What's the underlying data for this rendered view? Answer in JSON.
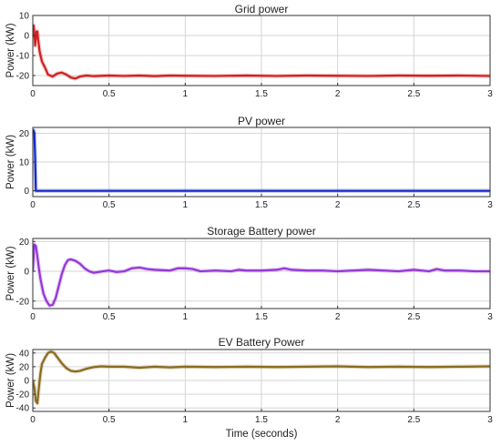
{
  "figure": {
    "xlabel": "Time (seconds)"
  },
  "chart_data": [
    {
      "type": "line",
      "title": "Grid power",
      "ylabel": "Power (kW)",
      "xlim": [
        0,
        3
      ],
      "ylim": [
        -25,
        10
      ],
      "xticks": [
        0,
        0.5,
        1,
        1.5,
        2,
        2.5,
        3
      ],
      "xticklabels": [
        "0",
        "0.5",
        "1",
        "1.5",
        "2",
        "2.5",
        "3"
      ],
      "yticks": [
        10,
        0,
        -10,
        -20
      ],
      "yticklabels": [
        "10",
        "0",
        "-10",
        "-20"
      ],
      "grid": true,
      "color": "#d11f1f",
      "series": [
        {
          "x": [
            0,
            0.005,
            0.01,
            0.015,
            0.02,
            0.025,
            0.03,
            0.035,
            0.045,
            0.06,
            0.08,
            0.1,
            0.13,
            0.16,
            0.19,
            0.22,
            0.25,
            0.28,
            0.31,
            0.35,
            0.4,
            0.5,
            0.6,
            0.7,
            0.8,
            0.9,
            1,
            1.2,
            1.4,
            1.6,
            1.8,
            2,
            2.2,
            2.4,
            2.6,
            2.8,
            3
          ],
          "y": [
            -1,
            5,
            2,
            -5,
            -2,
            2,
            2,
            -2,
            -8,
            -13,
            -16,
            -19.5,
            -20.5,
            -19,
            -18.5,
            -19.5,
            -21,
            -21.5,
            -20.5,
            -20,
            -20.3,
            -20,
            -20.2,
            -20,
            -20.3,
            -20,
            -20.1,
            -20.2,
            -20,
            -20.2,
            -20,
            -20.1,
            -20.2,
            -20,
            -20.1,
            -20,
            -20.2
          ]
        }
      ]
    },
    {
      "type": "line",
      "title": "PV power",
      "ylabel": "Power (kW)",
      "xlim": [
        0,
        3
      ],
      "ylim": [
        -2,
        22
      ],
      "xticks": [
        0,
        0.5,
        1,
        1.5,
        2,
        2.5,
        3
      ],
      "xticklabels": [
        "0",
        "0.5",
        "1",
        "1.5",
        "2",
        "2.5",
        "3"
      ],
      "yticks": [
        20,
        10,
        0
      ],
      "yticklabels": [
        "20",
        "10",
        "0"
      ],
      "grid": true,
      "color": "#1428c8",
      "series": [
        {
          "x": [
            0,
            0.005,
            0.01,
            0.015,
            0.02,
            0.03,
            0.05,
            0.5,
            1,
            1.5,
            2,
            2.5,
            3
          ],
          "y": [
            21,
            21,
            20,
            12,
            0,
            0,
            0,
            0,
            0,
            0,
            0,
            0,
            0
          ]
        }
      ]
    },
    {
      "type": "line",
      "title": "Storage Battery power",
      "ylabel": "Power (kW)",
      "xlim": [
        0,
        3
      ],
      "ylim": [
        -25,
        22
      ],
      "xticks": [
        0,
        0.5,
        1,
        1.5,
        2,
        2.5,
        3
      ],
      "xticklabels": [
        "0",
        "0.5",
        "1",
        "1.5",
        "2",
        "2.5",
        "3"
      ],
      "yticks": [
        20,
        0,
        -20
      ],
      "yticklabels": [
        "20",
        "0",
        "-20"
      ],
      "grid": true,
      "color": "#9436d6",
      "series": [
        {
          "x": [
            0,
            0.01,
            0.02,
            0.03,
            0.04,
            0.05,
            0.07,
            0.09,
            0.11,
            0.13,
            0.15,
            0.17,
            0.19,
            0.21,
            0.23,
            0.25,
            0.28,
            0.31,
            0.34,
            0.37,
            0.4,
            0.43,
            0.46,
            0.5,
            0.55,
            0.6,
            0.65,
            0.7,
            0.75,
            0.8,
            0.9,
            0.95,
            1,
            1.05,
            1.1,
            1.2,
            1.3,
            1.35,
            1.4,
            1.5,
            1.6,
            1.65,
            1.7,
            1.8,
            1.9,
            2,
            2.1,
            2.2,
            2.3,
            2.4,
            2.5,
            2.6,
            2.65,
            2.7,
            2.8,
            2.9,
            3
          ],
          "y": [
            0,
            18,
            17,
            10,
            2,
            -5,
            -15,
            -20,
            -23,
            -22.5,
            -18,
            -10,
            -2,
            4,
            7.5,
            8,
            7,
            5,
            2,
            0,
            -1,
            -0.5,
            0,
            0.5,
            -0.5,
            0,
            2,
            2.5,
            1.5,
            1,
            0.5,
            2,
            2,
            1.5,
            0,
            0.5,
            0,
            1,
            0.5,
            0.5,
            1,
            2,
            1,
            0.5,
            0.5,
            0,
            0.5,
            1,
            0.5,
            0,
            1,
            0,
            1.5,
            0.5,
            0.5,
            0,
            0
          ]
        }
      ]
    },
    {
      "type": "line",
      "title": "EV Battery Power",
      "ylabel": "Power (kW)",
      "xlim": [
        0,
        3
      ],
      "ylim": [
        -45,
        45
      ],
      "xticks": [
        0,
        0.5,
        1,
        1.5,
        2,
        2.5,
        3
      ],
      "xticklabels": [
        "0",
        "0.5",
        "1",
        "1.5",
        "2",
        "2.5",
        "3"
      ],
      "yticks": [
        40,
        20,
        0,
        -20,
        -40
      ],
      "yticklabels": [
        "40",
        "20",
        "0",
        "-20",
        "-40"
      ],
      "grid": true,
      "color": "#8a6a1e",
      "series": [
        {
          "x": [
            0,
            0.01,
            0.02,
            0.03,
            0.04,
            0.05,
            0.06,
            0.08,
            0.1,
            0.12,
            0.14,
            0.16,
            0.19,
            0.22,
            0.25,
            0.28,
            0.31,
            0.35,
            0.4,
            0.45,
            0.5,
            0.6,
            0.7,
            0.8,
            0.9,
            1,
            1.2,
            1.4,
            1.6,
            1.8,
            2,
            2.2,
            2.4,
            2.6,
            2.8,
            3
          ],
          "y": [
            0,
            -10,
            -30,
            -33,
            -10,
            10,
            24,
            33,
            40,
            42,
            40,
            34,
            25,
            18,
            14,
            13,
            14,
            17,
            19.5,
            20.5,
            20,
            20,
            18.5,
            20,
            19,
            20,
            19.5,
            20,
            19.5,
            20,
            20.5,
            19.5,
            20,
            19.5,
            20,
            20.5
          ]
        }
      ]
    }
  ]
}
